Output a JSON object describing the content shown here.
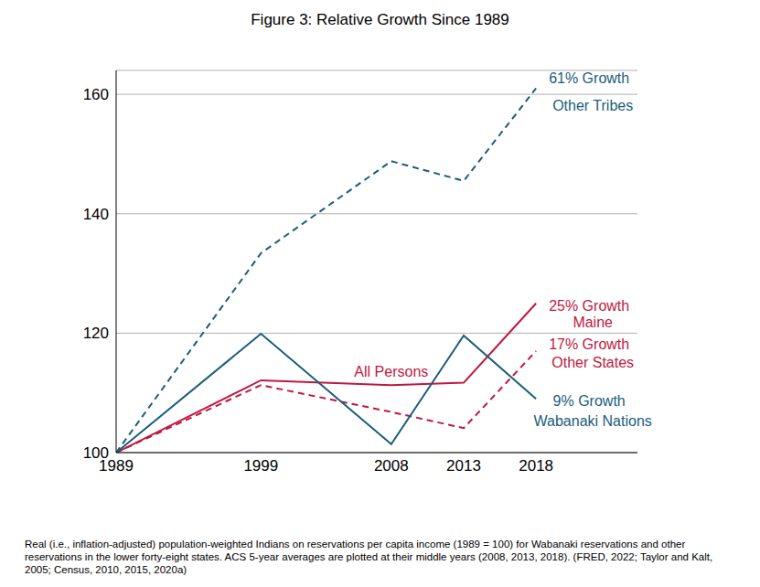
{
  "chart_data": {
    "type": "line",
    "title": "Figure 3: Relative Growth Since 1989",
    "caption": "Real (i.e., inflation-adjusted) population-weighted Indians on reservations per capita income (1989 = 100) for Wabanaki reservations and other reservations in the lower forty-eight states. ACS 5-year averages are plotted at their middle years (2008, 2013, 2018). (FRED, 2022; Taylor and Kalt, 2005; Census, 2010, 2015, 2020a)",
    "x": [
      1989,
      1999,
      2008,
      2013,
      2018
    ],
    "xlim": [
      1989,
      2025
    ],
    "xticks": [
      1989,
      1999,
      2008,
      2013,
      2018
    ],
    "ylim": [
      100,
      164
    ],
    "yticks": [
      100,
      120,
      140,
      160
    ],
    "grid": true,
    "series": [
      {
        "name": "Other Tribes",
        "annotation": "61% Growth",
        "color": "#1c5d7c",
        "line_style": "dashed",
        "values": [
          100,
          133.4,
          148.8,
          145.5,
          161
        ]
      },
      {
        "name": "Maine",
        "annotation": "25% Growth",
        "note": "All Persons",
        "color": "#c0183f",
        "line_style": "solid",
        "values": [
          100,
          112.1,
          111.3,
          111.7,
          125
        ]
      },
      {
        "name": "Other States",
        "annotation": "17% Growth",
        "color": "#c0183f",
        "line_style": "dashed",
        "values": [
          100,
          111.3,
          106.8,
          104.1,
          117
        ]
      },
      {
        "name": "Wabanaki Nations",
        "annotation": "9% Growth",
        "color": "#1c5d7c",
        "line_style": "solid",
        "values": [
          100,
          119.9,
          101.4,
          119.6,
          109
        ]
      }
    ]
  }
}
